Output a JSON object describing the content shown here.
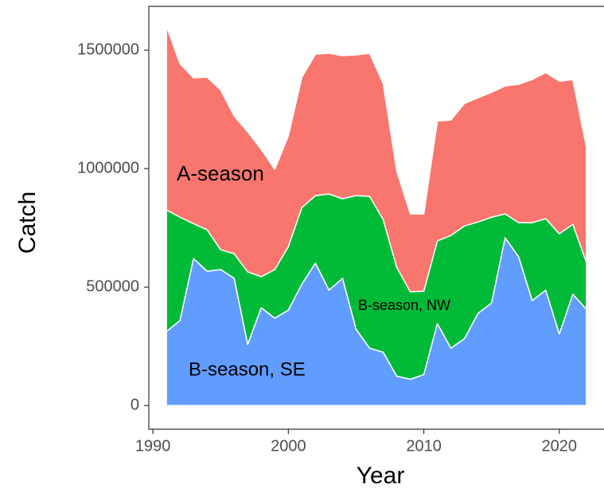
{
  "chart_data": {
    "type": "stacked_area",
    "xlabel": "Year",
    "ylabel": "Catch",
    "x": [
      1991,
      1992,
      1993,
      1994,
      1995,
      1996,
      1997,
      1998,
      1999,
      2000,
      2001,
      2002,
      2003,
      2004,
      2005,
      2006,
      2007,
      2008,
      2009,
      2010,
      2011,
      2012,
      2013,
      2014,
      2015,
      2016,
      2017,
      2018,
      2019,
      2020,
      2021,
      2022
    ],
    "series": [
      {
        "name": "B-season, SE",
        "color": "#619cff",
        "values": [
          312000,
          359000,
          621000,
          567000,
          574000,
          537000,
          258000,
          413000,
          369000,
          403000,
          513000,
          601000,
          487000,
          537000,
          322000,
          242000,
          225000,
          124000,
          111000,
          131000,
          346000,
          242000,
          282000,
          389000,
          433000,
          708000,
          628000,
          443000,
          487000,
          302000,
          470000,
          406000
        ]
      },
      {
        "name": "B-season, NW",
        "color": "#00ba38",
        "values": [
          514000,
          436000,
          147000,
          175000,
          84000,
          104000,
          306000,
          131000,
          205000,
          268000,
          323000,
          285000,
          406000,
          336000,
          564000,
          641000,
          560000,
          460000,
          369000,
          352000,
          349000,
          476000,
          476000,
          386000,
          362000,
          101000,
          144000,
          329000,
          302000,
          423000,
          295000,
          198000
        ]
      },
      {
        "name": "A-season",
        "color": "#f8766d",
        "values": [
          775000,
          648000,
          615000,
          644000,
          674000,
          581000,
          591000,
          537000,
          423000,
          467000,
          550000,
          597000,
          594000,
          604000,
          594000,
          604000,
          574000,
          406000,
          329000,
          326000,
          506000,
          487000,
          517000,
          524000,
          527000,
          540000,
          584000,
          604000,
          617000,
          644000,
          611000,
          487000
        ]
      }
    ],
    "xlim": [
      1989.7,
      2023.3
    ],
    "xticks": [
      1990,
      2000,
      2010,
      2020
    ],
    "ylim": [
      -100000,
      1685000
    ],
    "yticks": [
      0,
      500000,
      1000000,
      1500000
    ]
  }
}
